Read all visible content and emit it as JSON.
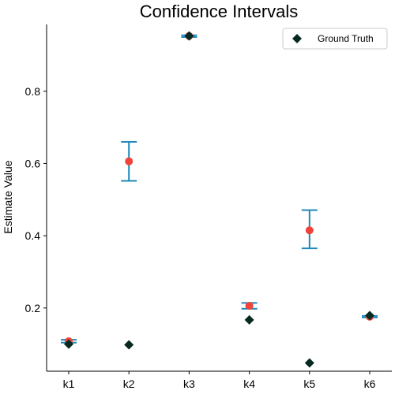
{
  "chart_data": {
    "type": "scatter",
    "title": "Confidence Intervals",
    "xlabel": "",
    "ylabel": "Estimate Value",
    "categories": [
      "k1",
      "k2",
      "k3",
      "k4",
      "k5",
      "k6"
    ],
    "y_ticks": [
      "0.2",
      "0.4",
      "0.6",
      "0.8"
    ],
    "ylim": [
      0.025,
      0.985
    ],
    "grid": false,
    "legend_position": "top-right",
    "series": [
      {
        "kind": "estimate",
        "values": [
          0.108,
          0.606,
          0.953,
          0.206,
          0.415,
          0.176
        ],
        "ci_low": [
          0.104,
          0.552,
          0.95,
          0.198,
          0.365,
          0.174
        ],
        "ci_high": [
          0.112,
          0.66,
          0.955,
          0.214,
          0.471,
          0.178
        ],
        "color": "#f0433a",
        "errorbar_color": "#1f88b8"
      },
      {
        "name": "Ground Truth",
        "kind": "ground_truth",
        "values": [
          0.1,
          0.098,
          0.953,
          0.167,
          0.048,
          0.179
        ],
        "color": "#062a22"
      }
    ]
  }
}
